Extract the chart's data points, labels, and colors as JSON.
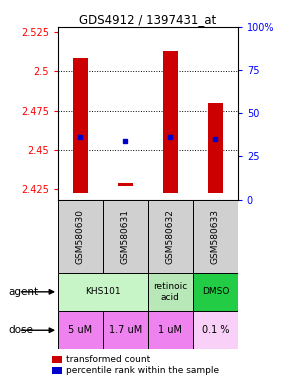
{
  "title": "GDS4912 / 1397431_at",
  "samples": [
    "GSM580630",
    "GSM580631",
    "GSM580632",
    "GSM580633"
  ],
  "bar_bottoms": [
    2.4225,
    2.427,
    2.4225,
    2.4225
  ],
  "bar_tops": [
    2.508,
    2.429,
    2.513,
    2.48
  ],
  "blue_dots": [
    2.458,
    2.456,
    2.458,
    2.457
  ],
  "ylim": [
    2.4185,
    2.528
  ],
  "yticks_left": [
    2.425,
    2.45,
    2.475,
    2.5,
    2.525
  ],
  "yticks_right": [
    0,
    25,
    50,
    75,
    100
  ],
  "ytick_right_labels": [
    "0",
    "25",
    "50",
    "75",
    "100%"
  ],
  "gridlines": [
    2.45,
    2.475,
    2.5
  ],
  "agent_groups": [
    {
      "start": 0,
      "end": 2,
      "label": "KHS101",
      "color": "#c8f5c8"
    },
    {
      "start": 2,
      "end": 3,
      "label": "retinoic\nacid",
      "color": "#b8e8b8"
    },
    {
      "start": 3,
      "end": 4,
      "label": "DMSO",
      "color": "#22cc44"
    }
  ],
  "doses": [
    "5 uM",
    "1.7 uM",
    "1 uM",
    "0.1 %"
  ],
  "dose_colors": [
    "#ee82ee",
    "#ee82ee",
    "#ee82ee",
    "#f8d0f8"
  ],
  "bar_color": "#cc0000",
  "dot_color": "#0000cc",
  "legend_bar_color": "#cc0000",
  "legend_dot_color": "#0000cc",
  "bg_color": "#ffffff",
  "plot_bg": "#ffffff",
  "sample_bg": "#d0d0d0",
  "n_samples": 4
}
